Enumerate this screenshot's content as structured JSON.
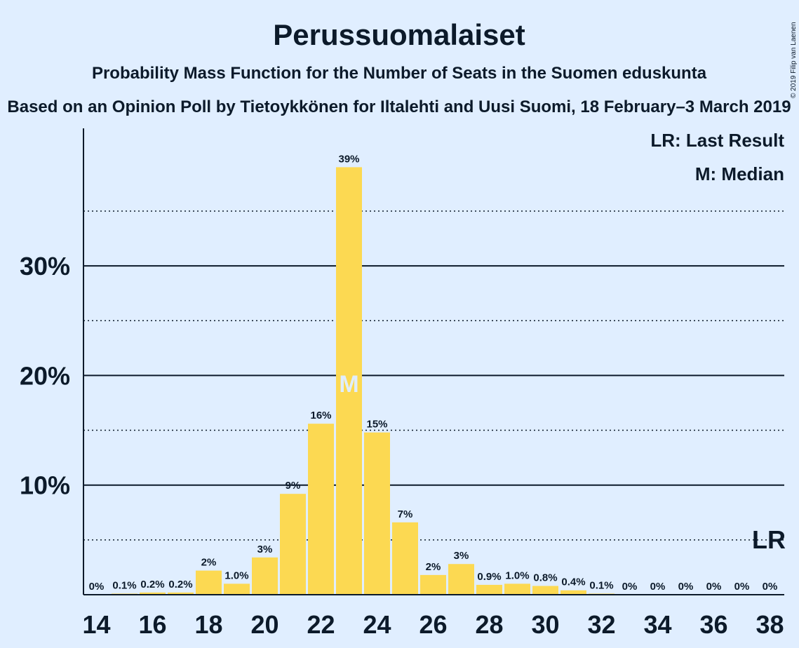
{
  "chart_data": {
    "type": "bar",
    "title": "Perussuomalaiset",
    "subtitle": "Probability Mass Function for the Number of Seats in the Suomen eduskunta",
    "subtitle2": "Based on an Opinion Poll by Tietoykkönen for Iltalehti and Uusi Suomi, 18 February–3 March 2019",
    "copyright": "© 2019 Filip van Laenen",
    "categories": [
      14,
      15,
      16,
      17,
      18,
      19,
      20,
      21,
      22,
      23,
      24,
      25,
      26,
      27,
      28,
      29,
      30,
      31,
      32,
      33,
      34,
      35,
      36,
      37,
      38
    ],
    "values": [
      0,
      0.1,
      0.2,
      0.2,
      2.2,
      1.0,
      3.4,
      9.2,
      15.6,
      39.0,
      14.8,
      6.6,
      1.8,
      2.8,
      0.9,
      1.0,
      0.8,
      0.4,
      0.1,
      0,
      0,
      0,
      0,
      0,
      0
    ],
    "labels": [
      "0%",
      "0.1%",
      "0.2%",
      "0.2%",
      "2%",
      "1.0%",
      "3%",
      "9%",
      "16%",
      "39%",
      "15%",
      "7%",
      "2%",
      "3%",
      "0.9%",
      "1.0%",
      "0.8%",
      "0.4%",
      "0.1%",
      "0%",
      "0%",
      "0%",
      "0%",
      "0%",
      "0%"
    ],
    "x_tick_labels": [
      "14",
      "16",
      "18",
      "20",
      "22",
      "24",
      "26",
      "28",
      "30",
      "32",
      "34",
      "36",
      "38"
    ],
    "y_ticks": [
      {
        "value": 10,
        "label": "10%"
      },
      {
        "value": 20,
        "label": "20%"
      },
      {
        "value": 30,
        "label": "30%"
      }
    ],
    "y_minor_ticks": [
      5,
      15,
      25,
      35
    ],
    "ylim": [
      0,
      42.5
    ],
    "median_seat": 23,
    "median_marker": "M",
    "last_result_seat": 38,
    "last_result_marker": "LR",
    "legend": [
      "LR: Last Result",
      "M: Median"
    ],
    "bar_color": "#fcd952",
    "background_color": "#e0eeff",
    "text_color": "#0c1a2a"
  }
}
